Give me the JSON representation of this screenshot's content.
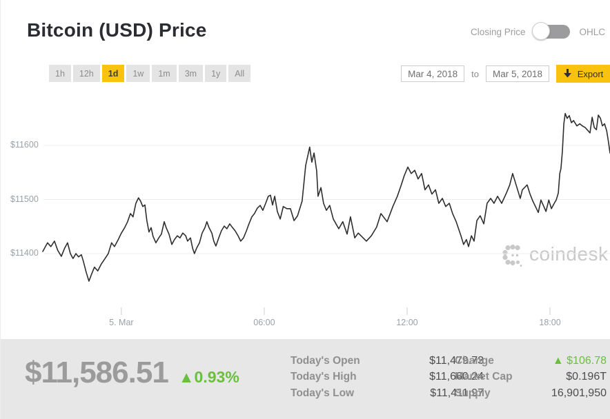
{
  "header": {
    "title": "Bitcoin (USD) Price",
    "toggle": {
      "left_label": "Closing Price",
      "right_label": "OHLC",
      "state": "closing-price"
    }
  },
  "toolbar": {
    "ranges": [
      {
        "label": "1h",
        "selected": false
      },
      {
        "label": "12h",
        "selected": false
      },
      {
        "label": "1d",
        "selected": true
      },
      {
        "label": "1w",
        "selected": false
      },
      {
        "label": "1m",
        "selected": false
      },
      {
        "label": "3m",
        "selected": false
      },
      {
        "label": "1y",
        "selected": false
      },
      {
        "label": "All",
        "selected": false
      }
    ],
    "date_from": "Mar 4, 2018",
    "to_word": "to",
    "date_to": "Mar 5, 2018",
    "export_label": "Export"
  },
  "watermark": {
    "text": "coindesk"
  },
  "footer": {
    "price": "$11,586.51",
    "change_arrow": "▲",
    "change_pct": "0.93%",
    "stats_left": [
      {
        "label": "Today's Open",
        "value": "$11,479.73",
        "positive": false
      },
      {
        "label": "Today's High",
        "value": "$11,660.24",
        "positive": false
      },
      {
        "label": "Today's Low",
        "value": "$11,411.97",
        "positive": false
      }
    ],
    "stats_right": [
      {
        "label": "Change",
        "value": "$106.78",
        "positive": true,
        "arrow": true
      },
      {
        "label": "Market Cap",
        "value": "$0.196T",
        "positive": false
      },
      {
        "label": "Supply",
        "value": "16,901,950",
        "positive": false
      }
    ]
  },
  "colors": {
    "accent_yellow": "#f8c20e",
    "positive_green": "#6abf3f",
    "line": "#2d2d2d",
    "grid": "#ececec",
    "tick": "#cfcfcf",
    "axis_text": "#9aa0a6",
    "watermark_gray": "#c9c9c9"
  },
  "chart_data": {
    "type": "line",
    "title": "Bitcoin (USD) Price, 1d view",
    "x_unit": "hours since Mar 5 2018 00:00 (negative = Mar 4)",
    "y_unit": "USD",
    "xlim": [
      -3.3,
      20.52
    ],
    "ylim": [
      11320,
      11690
    ],
    "grid": true,
    "legend": "none",
    "y_ticks": [
      {
        "label": "$11600",
        "value": 11600
      },
      {
        "label": "$11500",
        "value": 11500
      },
      {
        "label": "$11400",
        "value": 11400
      }
    ],
    "x_ticks": [
      {
        "label": "5. Mar",
        "value": 0
      },
      {
        "label": "06:00",
        "value": 6
      },
      {
        "label": "12:00",
        "value": 12
      },
      {
        "label": "18:00",
        "value": 18
      }
    ],
    "points": [
      [
        -3.3,
        11404
      ],
      [
        -3.1,
        11420
      ],
      [
        -2.96,
        11413
      ],
      [
        -2.81,
        11423
      ],
      [
        -2.67,
        11406
      ],
      [
        -2.52,
        11395
      ],
      [
        -2.38,
        11410
      ],
      [
        -2.26,
        11420
      ],
      [
        -2.14,
        11400
      ],
      [
        -2.03,
        11391
      ],
      [
        -1.91,
        11400
      ],
      [
        -1.8,
        11394
      ],
      [
        -1.68,
        11398
      ],
      [
        -1.59,
        11385
      ],
      [
        -1.48,
        11366
      ],
      [
        -1.36,
        11349
      ],
      [
        -1.25,
        11362
      ],
      [
        -1.13,
        11375
      ],
      [
        -0.99,
        11368
      ],
      [
        -0.84,
        11381
      ],
      [
        -0.7,
        11390
      ],
      [
        -0.55,
        11400
      ],
      [
        -0.41,
        11420
      ],
      [
        -0.29,
        11413
      ],
      [
        -0.14,
        11425
      ],
      [
        0,
        11438
      ],
      [
        0.14,
        11448
      ],
      [
        0.26,
        11459
      ],
      [
        0.38,
        11474
      ],
      [
        0.49,
        11468
      ],
      [
        0.61,
        11493
      ],
      [
        0.72,
        11503
      ],
      [
        0.81,
        11497
      ],
      [
        0.9,
        11487
      ],
      [
        0.99,
        11490
      ],
      [
        1.07,
        11461
      ],
      [
        1.16,
        11440
      ],
      [
        1.25,
        11448
      ],
      [
        1.33,
        11432
      ],
      [
        1.45,
        11420
      ],
      [
        1.57,
        11429
      ],
      [
        1.68,
        11436
      ],
      [
        1.8,
        11459
      ],
      [
        1.88,
        11448
      ],
      [
        2,
        11436
      ],
      [
        2.12,
        11417
      ],
      [
        2.23,
        11426
      ],
      [
        2.35,
        11433
      ],
      [
        2.46,
        11429
      ],
      [
        2.58,
        11438
      ],
      [
        2.7,
        11433
      ],
      [
        2.78,
        11423
      ],
      [
        2.9,
        11429
      ],
      [
        2.99,
        11410
      ],
      [
        3.07,
        11400
      ],
      [
        3.16,
        11410
      ],
      [
        3.28,
        11420
      ],
      [
        3.39,
        11438
      ],
      [
        3.51,
        11448
      ],
      [
        3.59,
        11459
      ],
      [
        3.68,
        11448
      ],
      [
        3.8,
        11438
      ],
      [
        3.88,
        11423
      ],
      [
        3.97,
        11414
      ],
      [
        4.09,
        11429
      ],
      [
        4.2,
        11442
      ],
      [
        4.32,
        11451
      ],
      [
        4.43,
        11446
      ],
      [
        4.55,
        11455
      ],
      [
        4.67,
        11448
      ],
      [
        4.78,
        11442
      ],
      [
        4.9,
        11433
      ],
      [
        5.01,
        11423
      ],
      [
        5.13,
        11429
      ],
      [
        5.25,
        11442
      ],
      [
        5.36,
        11455
      ],
      [
        5.48,
        11468
      ],
      [
        5.59,
        11474
      ],
      [
        5.71,
        11484
      ],
      [
        5.83,
        11489
      ],
      [
        5.94,
        11480
      ],
      [
        6.06,
        11493
      ],
      [
        6.17,
        11506
      ],
      [
        6.26,
        11508
      ],
      [
        6.35,
        11490
      ],
      [
        6.44,
        11506
      ],
      [
        6.55,
        11478
      ],
      [
        6.67,
        11464
      ],
      [
        6.8,
        11487
      ],
      [
        6.95,
        11483
      ],
      [
        7.1,
        11483
      ],
      [
        7.25,
        11461
      ],
      [
        7.4,
        11470
      ],
      [
        7.59,
        11497
      ],
      [
        7.74,
        11563
      ],
      [
        7.91,
        11597
      ],
      [
        8,
        11569
      ],
      [
        8.09,
        11586
      ],
      [
        8.2,
        11553
      ],
      [
        8.26,
        11506
      ],
      [
        8.38,
        11522
      ],
      [
        8.49,
        11493
      ],
      [
        8.61,
        11480
      ],
      [
        8.75,
        11489
      ],
      [
        8.9,
        11464
      ],
      [
        9.13,
        11446
      ],
      [
        9.3,
        11459
      ],
      [
        9.48,
        11436
      ],
      [
        9.62,
        11468
      ],
      [
        9.8,
        11429
      ],
      [
        9.95,
        11438
      ],
      [
        10.29,
        11423
      ],
      [
        10.5,
        11433
      ],
      [
        10.72,
        11449
      ],
      [
        10.9,
        11474
      ],
      [
        11.16,
        11459
      ],
      [
        11.4,
        11487
      ],
      [
        11.59,
        11506
      ],
      [
        11.74,
        11525
      ],
      [
        11.88,
        11544
      ],
      [
        12.03,
        11560
      ],
      [
        12.17,
        11548
      ],
      [
        12.32,
        11554
      ],
      [
        12.46,
        11538
      ],
      [
        12.61,
        11548
      ],
      [
        12.75,
        11518
      ],
      [
        12.9,
        11527
      ],
      [
        13.04,
        11510
      ],
      [
        13.19,
        11518
      ],
      [
        13.33,
        11493
      ],
      [
        13.48,
        11502
      ],
      [
        13.62,
        11487
      ],
      [
        13.77,
        11493
      ],
      [
        13.91,
        11474
      ],
      [
        14.06,
        11459
      ],
      [
        14.26,
        11433
      ],
      [
        14.37,
        11417
      ],
      [
        14.49,
        11426
      ],
      [
        14.58,
        11413
      ],
      [
        14.7,
        11433
      ],
      [
        14.81,
        11423
      ],
      [
        14.93,
        11461
      ],
      [
        15.07,
        11470
      ],
      [
        15.22,
        11455
      ],
      [
        15.36,
        11493
      ],
      [
        15.51,
        11502
      ],
      [
        15.65,
        11493
      ],
      [
        15.8,
        11506
      ],
      [
        15.97,
        11493
      ],
      [
        16.17,
        11512
      ],
      [
        16.31,
        11527
      ],
      [
        16.43,
        11548
      ],
      [
        16.55,
        11531
      ],
      [
        16.66,
        11515
      ],
      [
        16.75,
        11502
      ],
      [
        16.84,
        11518
      ],
      [
        17.04,
        11527
      ],
      [
        17.16,
        11510
      ],
      [
        17.28,
        11497
      ],
      [
        17.39,
        11487
      ],
      [
        17.51,
        11476
      ],
      [
        17.62,
        11499
      ],
      [
        17.74,
        11487
      ],
      [
        17.83,
        11478
      ],
      [
        17.95,
        11499
      ],
      [
        18.06,
        11483
      ],
      [
        18.18,
        11493
      ],
      [
        18.26,
        11499
      ],
      [
        18.35,
        11512
      ],
      [
        18.41,
        11548
      ],
      [
        18.46,
        11557
      ],
      [
        18.52,
        11589
      ],
      [
        18.58,
        11640
      ],
      [
        18.64,
        11659
      ],
      [
        18.72,
        11650
      ],
      [
        18.81,
        11655
      ],
      [
        18.9,
        11642
      ],
      [
        18.99,
        11646
      ],
      [
        19.13,
        11636
      ],
      [
        19.25,
        11640
      ],
      [
        19.36,
        11636
      ],
      [
        19.48,
        11633
      ],
      [
        19.6,
        11627
      ],
      [
        19.68,
        11623
      ],
      [
        19.77,
        11652
      ],
      [
        19.86,
        11633
      ],
      [
        19.95,
        11629
      ],
      [
        20.03,
        11656
      ],
      [
        20.12,
        11650
      ],
      [
        20.2,
        11636
      ],
      [
        20.29,
        11640
      ],
      [
        20.38,
        11627
      ],
      [
        20.45,
        11608
      ],
      [
        20.52,
        11586
      ]
    ]
  }
}
